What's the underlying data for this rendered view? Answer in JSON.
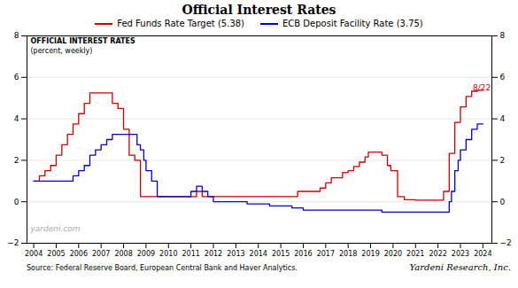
{
  "chart_data": {
    "type": "step",
    "title": "Official Interest Rates",
    "subtitle": [
      "OFFICIAL INTEREST RATES",
      "(percent, weekly)"
    ],
    "source": "Source: Federal Reserve Board, European Central Bank and Haver Analytics.",
    "credit": "Yardeni Research, Inc.",
    "watermark": "yardeni.com",
    "annotations": [
      {
        "text": "8/22",
        "x": 2023.55,
        "y": 5.38,
        "color": "#cc0000"
      }
    ],
    "xlim": [
      2003.7,
      2024.4
    ],
    "xticks": [
      2004,
      2005,
      2006,
      2007,
      2008,
      2009,
      2010,
      2011,
      2012,
      2013,
      2014,
      2015,
      2016,
      2017,
      2018,
      2019,
      2020,
      2021,
      2022,
      2023,
      2024
    ],
    "ylim": [
      -2,
      8
    ],
    "yticks": [
      -2,
      0,
      2,
      4,
      6,
      8
    ],
    "grid": true,
    "legend": "top",
    "series": [
      {
        "name": "Fed Funds Rate Target (5.38)",
        "color": "#cc0000",
        "x": [
          2004.0,
          2004.25,
          2004.5,
          2004.75,
          2005.0,
          2005.25,
          2005.5,
          2005.75,
          2006.0,
          2006.25,
          2006.5,
          2006.75,
          2007.0,
          2007.25,
          2007.5,
          2007.75,
          2008.0,
          2008.25,
          2008.5,
          2008.75,
          2009.0,
          2009.5,
          2010.0,
          2010.5,
          2011.0,
          2011.25,
          2011.5,
          2011.75,
          2012.0,
          2012.5,
          2013.0,
          2013.5,
          2014.0,
          2014.5,
          2015.0,
          2015.75,
          2016.0,
          2016.75,
          2017.0,
          2017.25,
          2017.75,
          2018.0,
          2018.25,
          2018.5,
          2018.75,
          2018.9,
          2019.0,
          2019.25,
          2019.5,
          2019.75,
          2019.9,
          2020.0,
          2020.2,
          2020.5,
          2021.0,
          2021.5,
          2022.0,
          2022.25,
          2022.5,
          2022.75,
          2023.0,
          2023.25,
          2023.5,
          2023.75,
          2024.0
        ],
        "values": [
          1.0,
          1.25,
          1.5,
          1.75,
          2.25,
          2.75,
          3.25,
          3.75,
          4.25,
          4.75,
          5.25,
          5.25,
          5.25,
          5.25,
          4.75,
          4.5,
          3.5,
          2.25,
          2.0,
          0.25,
          0.25,
          0.25,
          0.25,
          0.25,
          0.25,
          0.5,
          0.25,
          0.25,
          0.25,
          0.25,
          0.25,
          0.25,
          0.25,
          0.25,
          0.25,
          0.5,
          0.5,
          0.66,
          0.91,
          1.16,
          1.41,
          1.5,
          1.7,
          1.91,
          2.16,
          2.4,
          2.4,
          2.4,
          2.25,
          1.75,
          1.5,
          1.5,
          0.25,
          0.1,
          0.08,
          0.08,
          0.08,
          0.5,
          2.33,
          3.83,
          4.58,
          5.08,
          5.33,
          5.38,
          5.38
        ]
      },
      {
        "name": "ECB Deposit Facility Rate (3.75)",
        "color": "#0000cc",
        "x": [
          2004.0,
          2004.5,
          2005.0,
          2005.25,
          2005.75,
          2006.0,
          2006.25,
          2006.5,
          2006.75,
          2007.0,
          2007.25,
          2007.5,
          2007.75,
          2008.0,
          2008.25,
          2008.5,
          2008.6,
          2008.75,
          2008.9,
          2009.0,
          2009.25,
          2009.5,
          2010.0,
          2010.5,
          2011.0,
          2011.25,
          2011.5,
          2011.75,
          2012.0,
          2012.5,
          2013.0,
          2013.5,
          2014.0,
          2014.5,
          2015.0,
          2015.5,
          2016.0,
          2016.5,
          2017.0,
          2017.5,
          2018.0,
          2018.5,
          2019.0,
          2019.5,
          2020.0,
          2020.5,
          2021.0,
          2021.5,
          2022.0,
          2022.5,
          2022.6,
          2022.75,
          2022.9,
          2023.0,
          2023.25,
          2023.5,
          2023.75,
          2024.0
        ],
        "values": [
          1.0,
          1.0,
          1.0,
          1.0,
          1.25,
          1.5,
          1.75,
          2.25,
          2.5,
          2.75,
          3.0,
          3.25,
          3.25,
          3.25,
          3.25,
          3.25,
          2.75,
          2.5,
          2.0,
          1.5,
          1.0,
          0.25,
          0.25,
          0.25,
          0.5,
          0.75,
          0.5,
          0.25,
          0.0,
          0.0,
          0.0,
          -0.1,
          -0.1,
          -0.2,
          -0.2,
          -0.3,
          -0.4,
          -0.4,
          -0.4,
          -0.4,
          -0.4,
          -0.4,
          -0.4,
          -0.5,
          -0.5,
          -0.5,
          -0.5,
          -0.5,
          -0.5,
          0.0,
          0.5,
          1.5,
          2.0,
          2.5,
          3.0,
          3.5,
          3.75,
          3.75
        ]
      }
    ]
  }
}
